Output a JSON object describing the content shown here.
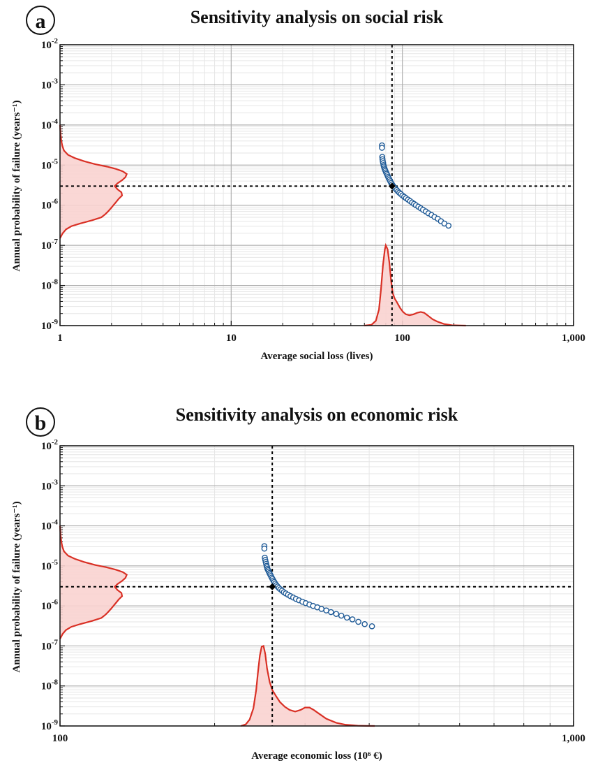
{
  "chart_data": [
    {
      "panel": "a",
      "type": "scatter",
      "title": "Sensitivity analysis on social risk",
      "xlabel": "Average social loss (lives)",
      "ylabel": "Annual probability of failure (years⁻¹)",
      "xscale": "log",
      "yscale": "log",
      "xlim": [
        1,
        1000
      ],
      "ylim": [
        1e-09,
        0.01
      ],
      "xticks": [
        1,
        10,
        100,
        1000
      ],
      "xtick_labels": [
        "1",
        "10",
        "100",
        "1,000"
      ],
      "yticks": [
        1e-09,
        1e-08,
        1e-07,
        1e-06,
        1e-05,
        0.0001,
        0.001,
        0.01
      ],
      "grid": true,
      "reference_point": {
        "x": 87,
        "y": 3e-06
      },
      "x": [
        76,
        76,
        76.3,
        76.5,
        76.8,
        77.2,
        77.6,
        78,
        78.5,
        79,
        79.6,
        80.3,
        81,
        81.8,
        82.5,
        83.3,
        84.2,
        85,
        86,
        87,
        88.2,
        89.5,
        91,
        92.6,
        94.3,
        96,
        98,
        100,
        102.5,
        105,
        108,
        111,
        114,
        117,
        120,
        124,
        128,
        132,
        137,
        142,
        148,
        154,
        161,
        168,
        176,
        186
      ],
      "y": [
        3.1e-05,
        2.7e-05,
        1.6e-05,
        1.4e-05,
        1.25e-05,
        1.12e-05,
        1e-05,
        9.2e-06,
        8.4e-06,
        7.8e-06,
        7.2e-06,
        6.6e-06,
        6.1e-06,
        5.6e-06,
        5.1e-06,
        4.7e-06,
        4.3e-06,
        3.95e-06,
        3.6e-06,
        3.3e-06,
        3.05e-06,
        2.8e-06,
        2.6e-06,
        2.4e-06,
        2.2e-06,
        2.05e-06,
        1.9e-06,
        1.75e-06,
        1.62e-06,
        1.5e-06,
        1.38e-06,
        1.27e-06,
        1.17e-06,
        1.08e-06,
        1e-06,
        9.2e-07,
        8.4e-07,
        7.7e-07,
        7e-07,
        6.3e-07,
        5.7e-07,
        5.1e-07,
        4.6e-07,
        4e-07,
        3.5e-07,
        3.1e-07
      ],
      "marginal_x": {
        "x": [
          60,
          66,
          70,
          73,
          75,
          77,
          79,
          80,
          82,
          84,
          86,
          88,
          90,
          93,
          97,
          101,
          105,
          110,
          116,
          122,
          128,
          134,
          140,
          150,
          160,
          175,
          195,
          220,
          235
        ],
        "density": [
          0,
          0.01,
          0.06,
          0.2,
          0.45,
          0.75,
          0.95,
          1.0,
          0.95,
          0.78,
          0.55,
          0.4,
          0.34,
          0.29,
          0.22,
          0.17,
          0.14,
          0.13,
          0.14,
          0.16,
          0.17,
          0.16,
          0.13,
          0.08,
          0.05,
          0.02,
          0.005,
          0.001,
          0
        ]
      },
      "marginal_y": {
        "y": [
          1.5e-07,
          2e-07,
          2.5e-07,
          3e-07,
          3.5e-07,
          4.2e-07,
          5e-07,
          6e-07,
          7e-07,
          8.3e-07,
          1e-06,
          1.2e-06,
          1.45e-06,
          1.75e-06,
          2.1e-06,
          2.5e-06,
          3e-06,
          3.5e-06,
          4.2e-06,
          5e-06,
          6e-06,
          7e-06,
          8e-06,
          9.2e-06,
          1.05e-05,
          1.25e-05,
          1.5e-05,
          1.8e-05,
          2.3e-05,
          3e-05,
          4e-05,
          6e-05,
          0.0001
        ],
        "density": [
          0,
          0.04,
          0.09,
          0.17,
          0.3,
          0.48,
          0.62,
          0.68,
          0.72,
          0.76,
          0.8,
          0.84,
          0.88,
          0.93,
          0.92,
          0.86,
          0.82,
          0.86,
          0.93,
          0.98,
          1.0,
          0.94,
          0.84,
          0.7,
          0.53,
          0.36,
          0.22,
          0.12,
          0.06,
          0.035,
          0.02,
          0.008,
          0
        ]
      }
    },
    {
      "panel": "b",
      "type": "scatter",
      "title": "Sensitivity analysis on economic risk",
      "xlabel": "Average economic loss (10⁶ €)",
      "ylabel": "Annual probability of failure (years⁻¹)",
      "xscale": "log",
      "yscale": "log",
      "xlim": [
        100,
        1000
      ],
      "ylim": [
        1e-09,
        0.01
      ],
      "xticks": [
        100,
        1000
      ],
      "xtick_labels": [
        "100",
        "1,000"
      ],
      "yticks": [
        1e-09,
        1e-08,
        1e-07,
        1e-06,
        1e-05,
        0.0001,
        0.001,
        0.01
      ],
      "grid": true,
      "reference_point": {
        "x": 259,
        "y": 3e-06
      },
      "x": [
        250,
        250,
        250.5,
        251,
        251.5,
        252,
        252.5,
        253,
        253.5,
        254.2,
        255,
        255.8,
        256.6,
        257.5,
        258.4,
        259.3,
        260.3,
        261.3,
        262.5,
        263.8,
        265.2,
        266.8,
        268.6,
        270.6,
        272.8,
        275.2,
        278,
        281,
        284.5,
        288,
        292,
        296.5,
        301,
        306,
        311,
        317,
        323,
        330,
        337,
        345,
        353,
        362,
        371,
        381,
        392,
        405
      ],
      "y": [
        3.1e-05,
        2.7e-05,
        1.6e-05,
        1.4e-05,
        1.25e-05,
        1.12e-05,
        1e-05,
        9.2e-06,
        8.4e-06,
        7.8e-06,
        7.2e-06,
        6.6e-06,
        6.1e-06,
        5.6e-06,
        5.1e-06,
        4.7e-06,
        4.3e-06,
        3.95e-06,
        3.6e-06,
        3.3e-06,
        3.05e-06,
        2.8e-06,
        2.6e-06,
        2.4e-06,
        2.2e-06,
        2.05e-06,
        1.9e-06,
        1.75e-06,
        1.62e-06,
        1.5e-06,
        1.38e-06,
        1.27e-06,
        1.17e-06,
        1.08e-06,
        1e-06,
        9.2e-07,
        8.4e-07,
        7.7e-07,
        7e-07,
        6.3e-07,
        5.7e-07,
        5.1e-07,
        4.6e-07,
        4e-07,
        3.5e-07,
        3.1e-07
      ],
      "marginal_x": {
        "x": [
          225,
          230,
          234,
          238,
          241,
          243,
          245,
          247,
          249,
          251,
          253,
          256,
          259,
          263,
          268,
          274,
          280,
          287,
          294,
          300,
          306,
          312,
          320,
          330,
          345,
          360,
          380,
          395,
          410
        ],
        "density": [
          0,
          0.02,
          0.08,
          0.22,
          0.45,
          0.68,
          0.88,
          0.99,
          1.0,
          0.9,
          0.72,
          0.55,
          0.45,
          0.38,
          0.3,
          0.24,
          0.2,
          0.18,
          0.2,
          0.23,
          0.23,
          0.2,
          0.15,
          0.09,
          0.04,
          0.015,
          0.004,
          0.001,
          0
        ]
      },
      "marginal_y": {
        "y": [
          1.5e-07,
          2e-07,
          2.5e-07,
          3e-07,
          3.5e-07,
          4.2e-07,
          5e-07,
          6e-07,
          7e-07,
          8.3e-07,
          1e-06,
          1.2e-06,
          1.45e-06,
          1.75e-06,
          2.1e-06,
          2.5e-06,
          3e-06,
          3.5e-06,
          4.2e-06,
          5e-06,
          6e-06,
          7e-06,
          8e-06,
          9.2e-06,
          1.05e-05,
          1.25e-05,
          1.5e-05,
          1.8e-05,
          2.3e-05,
          3e-05,
          4e-05,
          6e-05,
          0.0001
        ],
        "density": [
          0,
          0.04,
          0.09,
          0.17,
          0.3,
          0.48,
          0.62,
          0.68,
          0.72,
          0.76,
          0.8,
          0.84,
          0.88,
          0.93,
          0.92,
          0.86,
          0.82,
          0.86,
          0.93,
          0.98,
          1.0,
          0.94,
          0.84,
          0.7,
          0.53,
          0.36,
          0.22,
          0.12,
          0.06,
          0.035,
          0.02,
          0.008,
          0
        ]
      }
    }
  ],
  "colors": {
    "points": "#1f5a96",
    "density_line": "#d93025",
    "density_fill": "#f9d3d0",
    "reference_line": "#000000",
    "grid_major": "#b0b0b0",
    "grid_minor": "#e6e6e6"
  }
}
